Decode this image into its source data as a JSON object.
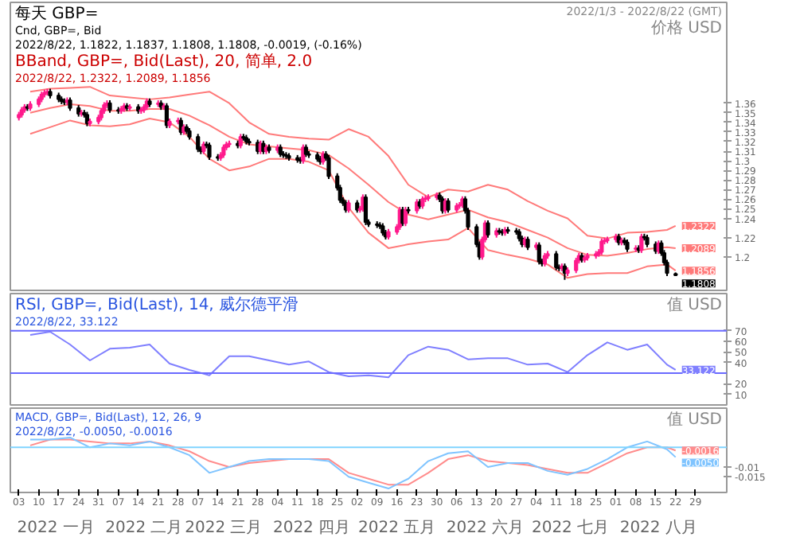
{
  "chart_data": [
    {
      "type": "candlestick",
      "title": "每天 GBP=",
      "subtitle": "Cnd, GBP=, Bid",
      "annotations": [
        "2022/8/22, 1.1822, 1.1837, 1.1808, 1.1808, -0.0019, (-0.16%)",
        "BBand, GBP=, Bid(Last), 20, 简单, 2.0",
        "2022/8/22, 1.2322, 1.2089, 1.1856",
        "2022/1/3 - 2022/8/22 (GMT)",
        {
          "text": "1.1808",
          "x": "2022-08-22",
          "y": 1.1808
        }
      ],
      "ylabel": "价格 USD",
      "x": [
        "2022-01-03",
        "2022-01-04",
        "2022-01-05",
        "2022-01-06",
        "2022-01-07",
        "2022-01-10",
        "2022-01-11",
        "2022-01-12",
        "2022-01-13",
        "2022-01-14",
        "2022-01-17",
        "2022-01-18",
        "2022-01-19",
        "2022-01-20",
        "2022-01-21",
        "2022-01-24",
        "2022-01-25",
        "2022-01-26",
        "2022-01-27",
        "2022-01-28",
        "2022-01-31",
        "2022-02-01",
        "2022-02-02",
        "2022-02-03",
        "2022-02-04",
        "2022-02-07",
        "2022-02-08",
        "2022-02-09",
        "2022-02-10",
        "2022-02-11",
        "2022-02-14",
        "2022-02-15",
        "2022-02-16",
        "2022-02-17",
        "2022-02-18",
        "2022-02-21",
        "2022-02-22",
        "2022-02-23",
        "2022-02-24",
        "2022-02-25",
        "2022-02-28",
        "2022-03-01",
        "2022-03-02",
        "2022-03-03",
        "2022-03-04",
        "2022-03-07",
        "2022-03-08",
        "2022-03-09",
        "2022-03-10",
        "2022-03-11",
        "2022-03-14",
        "2022-03-15",
        "2022-03-16",
        "2022-03-17",
        "2022-03-18",
        "2022-03-21",
        "2022-03-22",
        "2022-03-23",
        "2022-03-24",
        "2022-03-25",
        "2022-03-28",
        "2022-03-29",
        "2022-03-30",
        "2022-03-31",
        "2022-04-01",
        "2022-04-04",
        "2022-04-05",
        "2022-04-06",
        "2022-04-07",
        "2022-04-08",
        "2022-04-11",
        "2022-04-12",
        "2022-04-13",
        "2022-04-14",
        "2022-04-15",
        "2022-04-18",
        "2022-04-19",
        "2022-04-20",
        "2022-04-21",
        "2022-04-22",
        "2022-04-25",
        "2022-04-26",
        "2022-04-27",
        "2022-04-28",
        "2022-04-29",
        "2022-05-02",
        "2022-05-03",
        "2022-05-04",
        "2022-05-05",
        "2022-05-06",
        "2022-05-09",
        "2022-05-10",
        "2022-05-11",
        "2022-05-12",
        "2022-05-13",
        "2022-05-16",
        "2022-05-17",
        "2022-05-18",
        "2022-05-19",
        "2022-05-20",
        "2022-05-23",
        "2022-05-24",
        "2022-05-25",
        "2022-05-26",
        "2022-05-27",
        "2022-05-30",
        "2022-05-31",
        "2022-06-01",
        "2022-06-02",
        "2022-06-03",
        "2022-06-06",
        "2022-06-07",
        "2022-06-08",
        "2022-06-09",
        "2022-06-10",
        "2022-06-13",
        "2022-06-14",
        "2022-06-15",
        "2022-06-16",
        "2022-06-17",
        "2022-06-20",
        "2022-06-21",
        "2022-06-22",
        "2022-06-23",
        "2022-06-24",
        "2022-06-27",
        "2022-06-28",
        "2022-06-29",
        "2022-06-30",
        "2022-07-01",
        "2022-07-04",
        "2022-07-05",
        "2022-07-06",
        "2022-07-07",
        "2022-07-08",
        "2022-07-11",
        "2022-07-12",
        "2022-07-13",
        "2022-07-14",
        "2022-07-15",
        "2022-07-18",
        "2022-07-19",
        "2022-07-20",
        "2022-07-21",
        "2022-07-22",
        "2022-07-25",
        "2022-07-26",
        "2022-07-27",
        "2022-07-28",
        "2022-07-29",
        "2022-08-01",
        "2022-08-02",
        "2022-08-03",
        "2022-08-04",
        "2022-08-05",
        "2022-08-08",
        "2022-08-09",
        "2022-08-10",
        "2022-08-11",
        "2022-08-12",
        "2022-08-15",
        "2022-08-16",
        "2022-08-17",
        "2022-08-18",
        "2022-08-19",
        "2022-08-22"
      ],
      "ohlc": [
        [
          1.345,
          1.351,
          1.342,
          1.348
        ],
        [
          1.348,
          1.356,
          1.345,
          1.353
        ],
        [
          1.353,
          1.359,
          1.35,
          1.356
        ],
        [
          1.356,
          1.359,
          1.352,
          1.355
        ],
        [
          1.355,
          1.362,
          1.352,
          1.359
        ],
        [
          1.359,
          1.367,
          1.356,
          1.364
        ],
        [
          1.364,
          1.372,
          1.361,
          1.369
        ],
        [
          1.369,
          1.374,
          1.366,
          1.371
        ],
        [
          1.371,
          1.375,
          1.368,
          1.372
        ],
        [
          1.372,
          1.375,
          1.365,
          1.368
        ],
        [
          1.368,
          1.371,
          1.361,
          1.364
        ],
        [
          1.364,
          1.367,
          1.359,
          1.362
        ],
        [
          1.362,
          1.365,
          1.358,
          1.361
        ],
        [
          1.361,
          1.366,
          1.358,
          1.363
        ],
        [
          1.363,
          1.366,
          1.352,
          1.355
        ],
        [
          1.355,
          1.358,
          1.346,
          1.349
        ],
        [
          1.349,
          1.353,
          1.346,
          1.35
        ],
        [
          1.35,
          1.353,
          1.345,
          1.348
        ],
        [
          1.348,
          1.351,
          1.336,
          1.339
        ],
        [
          1.339,
          1.344,
          1.336,
          1.341
        ],
        [
          1.341,
          1.348,
          1.338,
          1.345
        ],
        [
          1.345,
          1.355,
          1.342,
          1.352
        ],
        [
          1.352,
          1.361,
          1.349,
          1.358
        ],
        [
          1.358,
          1.363,
          1.355,
          1.36
        ],
        [
          1.36,
          1.363,
          1.35,
          1.353
        ],
        [
          1.353,
          1.356,
          1.349,
          1.352
        ],
        [
          1.352,
          1.357,
          1.349,
          1.354
        ],
        [
          1.354,
          1.36,
          1.351,
          1.357
        ],
        [
          1.357,
          1.36,
          1.352,
          1.355
        ],
        [
          1.355,
          1.359,
          1.352,
          1.356
        ],
        [
          1.356,
          1.359,
          1.349,
          1.352
        ],
        [
          1.352,
          1.356,
          1.349,
          1.353
        ],
        [
          1.353,
          1.359,
          1.35,
          1.356
        ],
        [
          1.356,
          1.365,
          1.353,
          1.362
        ],
        [
          1.362,
          1.365,
          1.356,
          1.359
        ],
        [
          1.359,
          1.363,
          1.356,
          1.36
        ],
        [
          1.36,
          1.363,
          1.353,
          1.356
        ],
        [
          1.356,
          1.36,
          1.353,
          1.357
        ],
        [
          1.357,
          1.36,
          1.334,
          1.337
        ],
        [
          1.337,
          1.344,
          1.334,
          1.341
        ],
        [
          1.341,
          1.345,
          1.338,
          1.342
        ],
        [
          1.342,
          1.345,
          1.327,
          1.33
        ],
        [
          1.33,
          1.338,
          1.327,
          1.335
        ],
        [
          1.335,
          1.338,
          1.328,
          1.331
        ],
        [
          1.331,
          1.334,
          1.322,
          1.325
        ],
        [
          1.325,
          1.328,
          1.309,
          1.312
        ],
        [
          1.312,
          1.315,
          1.307,
          1.31
        ],
        [
          1.31,
          1.32,
          1.307,
          1.317
        ],
        [
          1.317,
          1.32,
          1.313,
          1.316
        ],
        [
          1.316,
          1.319,
          1.301,
          1.304
        ],
        [
          1.304,
          1.307,
          1.3,
          1.303
        ],
        [
          1.303,
          1.309,
          1.3,
          1.306
        ],
        [
          1.306,
          1.317,
          1.303,
          1.314
        ],
        [
          1.314,
          1.32,
          1.311,
          1.317
        ],
        [
          1.317,
          1.321,
          1.314,
          1.318
        ],
        [
          1.318,
          1.321,
          1.313,
          1.316
        ],
        [
          1.316,
          1.328,
          1.313,
          1.325
        ],
        [
          1.325,
          1.328,
          1.321,
          1.324
        ],
        [
          1.324,
          1.327,
          1.317,
          1.32
        ],
        [
          1.32,
          1.323,
          1.316,
          1.319
        ],
        [
          1.319,
          1.322,
          1.307,
          1.31
        ],
        [
          1.31,
          1.321,
          1.307,
          1.318
        ],
        [
          1.318,
          1.321,
          1.307,
          1.31
        ],
        [
          1.31,
          1.317,
          1.307,
          1.314
        ],
        [
          1.314,
          1.317,
          1.308,
          1.311
        ],
        [
          1.311,
          1.317,
          1.308,
          1.314
        ],
        [
          1.314,
          1.317,
          1.304,
          1.307
        ],
        [
          1.307,
          1.31,
          1.303,
          1.306
        ],
        [
          1.306,
          1.309,
          1.302,
          1.305
        ],
        [
          1.305,
          1.308,
          1.3,
          1.303
        ],
        [
          1.303,
          1.306,
          1.298,
          1.301
        ],
        [
          1.301,
          1.304,
          1.297,
          1.3
        ],
        [
          1.3,
          1.317,
          1.297,
          1.314
        ],
        [
          1.314,
          1.317,
          1.304,
          1.307
        ],
        [
          1.307,
          1.31,
          1.303,
          1.306
        ],
        [
          1.306,
          1.309,
          1.299,
          1.302
        ],
        [
          1.302,
          1.305,
          1.296,
          1.299
        ],
        [
          1.299,
          1.31,
          1.296,
          1.307
        ],
        [
          1.307,
          1.31,
          1.3,
          1.303
        ],
        [
          1.303,
          1.306,
          1.281,
          1.284
        ],
        [
          1.284,
          1.287,
          1.269,
          1.272
        ],
        [
          1.272,
          1.275,
          1.256,
          1.259
        ],
        [
          1.259,
          1.262,
          1.253,
          1.256
        ],
        [
          1.256,
          1.259,
          1.246,
          1.249
        ],
        [
          1.249,
          1.259,
          1.246,
          1.256
        ],
        [
          1.256,
          1.259,
          1.246,
          1.249
        ],
        [
          1.249,
          1.253,
          1.246,
          1.25
        ],
        [
          1.25,
          1.265,
          1.247,
          1.262
        ],
        [
          1.262,
          1.265,
          1.233,
          1.236
        ],
        [
          1.236,
          1.239,
          1.231,
          1.234
        ],
        [
          1.234,
          1.237,
          1.23,
          1.233
        ],
        [
          1.233,
          1.236,
          1.229,
          1.232
        ],
        [
          1.232,
          1.235,
          1.222,
          1.225
        ],
        [
          1.225,
          1.228,
          1.218,
          1.221
        ],
        [
          1.221,
          1.229,
          1.218,
          1.226
        ],
        [
          1.226,
          1.234,
          1.223,
          1.231
        ],
        [
          1.231,
          1.252,
          1.228,
          1.249
        ],
        [
          1.249,
          1.252,
          1.232,
          1.235
        ],
        [
          1.235,
          1.252,
          1.232,
          1.249
        ],
        [
          1.249,
          1.252,
          1.245,
          1.248
        ],
        [
          1.248,
          1.26,
          1.245,
          1.257
        ],
        [
          1.257,
          1.26,
          1.25,
          1.253
        ],
        [
          1.253,
          1.263,
          1.25,
          1.26
        ],
        [
          1.26,
          1.264,
          1.257,
          1.261
        ],
        [
          1.261,
          1.265,
          1.258,
          1.262
        ],
        [
          1.262,
          1.267,
          1.259,
          1.264
        ],
        [
          1.264,
          1.267,
          1.257,
          1.26
        ],
        [
          1.26,
          1.263,
          1.245,
          1.248
        ],
        [
          1.248,
          1.261,
          1.245,
          1.258
        ],
        [
          1.258,
          1.261,
          1.246,
          1.249
        ],
        [
          1.249,
          1.256,
          1.246,
          1.253
        ],
        [
          1.253,
          1.257,
          1.25,
          1.254
        ],
        [
          1.254,
          1.263,
          1.251,
          1.26
        ],
        [
          1.26,
          1.263,
          1.245,
          1.248
        ],
        [
          1.248,
          1.251,
          1.228,
          1.231
        ],
        [
          1.231,
          1.234,
          1.21,
          1.213
        ],
        [
          1.213,
          1.216,
          1.197,
          1.2
        ],
        [
          1.2,
          1.221,
          1.197,
          1.218
        ],
        [
          1.218,
          1.238,
          1.215,
          1.235
        ],
        [
          1.235,
          1.238,
          1.22,
          1.223
        ],
        [
          1.223,
          1.23,
          1.22,
          1.227
        ],
        [
          1.227,
          1.23,
          1.223,
          1.226
        ],
        [
          1.226,
          1.229,
          1.222,
          1.225
        ],
        [
          1.225,
          1.231,
          1.222,
          1.228
        ],
        [
          1.228,
          1.231,
          1.224,
          1.227
        ],
        [
          1.227,
          1.23,
          1.223,
          1.226
        ],
        [
          1.226,
          1.229,
          1.216,
          1.219
        ],
        [
          1.219,
          1.222,
          1.21,
          1.213
        ],
        [
          1.213,
          1.221,
          1.21,
          1.218
        ],
        [
          1.218,
          1.221,
          1.207,
          1.21
        ],
        [
          1.21,
          1.215,
          1.207,
          1.212
        ],
        [
          1.212,
          1.215,
          1.192,
          1.195
        ],
        [
          1.195,
          1.198,
          1.19,
          1.193
        ],
        [
          1.193,
          1.204,
          1.19,
          1.201
        ],
        [
          1.201,
          1.206,
          1.198,
          1.203
        ],
        [
          1.203,
          1.206,
          1.186,
          1.189
        ],
        [
          1.189,
          1.192,
          1.185,
          1.188
        ],
        [
          1.188,
          1.193,
          1.185,
          1.19
        ],
        [
          1.19,
          1.193,
          1.176,
          1.183
        ],
        [
          1.183,
          1.189,
          1.18,
          1.186
        ],
        [
          1.186,
          1.199,
          1.183,
          1.196
        ],
        [
          1.196,
          1.204,
          1.193,
          1.201
        ],
        [
          1.201,
          1.204,
          1.194,
          1.197
        ],
        [
          1.197,
          1.202,
          1.194,
          1.199
        ],
        [
          1.199,
          1.204,
          1.196,
          1.201
        ],
        [
          1.201,
          1.206,
          1.198,
          1.203
        ],
        [
          1.203,
          1.208,
          1.2,
          1.205
        ],
        [
          1.205,
          1.219,
          1.202,
          1.216
        ],
        [
          1.216,
          1.22,
          1.213,
          1.217
        ],
        [
          1.217,
          1.221,
          1.214,
          1.218
        ],
        [
          1.218,
          1.224,
          1.215,
          1.221
        ],
        [
          1.221,
          1.224,
          1.212,
          1.215
        ],
        [
          1.215,
          1.22,
          1.212,
          1.217
        ],
        [
          1.217,
          1.22,
          1.212,
          1.215
        ],
        [
          1.215,
          1.218,
          1.205,
          1.208
        ],
        [
          1.208,
          1.212,
          1.205,
          1.209
        ],
        [
          1.209,
          1.212,
          1.204,
          1.207
        ],
        [
          1.207,
          1.224,
          1.204,
          1.221
        ],
        [
          1.221,
          1.224,
          1.217,
          1.22
        ],
        [
          1.22,
          1.223,
          1.21,
          1.213
        ],
        [
          1.213,
          1.216,
          1.203,
          1.206
        ],
        [
          1.206,
          1.217,
          1.203,
          1.214
        ],
        [
          1.214,
          1.217,
          1.201,
          1.204
        ],
        [
          1.204,
          1.207,
          1.191,
          1.194
        ],
        [
          1.194,
          1.197,
          1.18,
          1.183
        ],
        [
          1.1822,
          1.1837,
          1.1808,
          1.1808
        ]
      ],
      "series": [
        {
          "type": "line",
          "color": "#ff7a7a",
          "x": [
            "2022-01-07",
            "2022-01-14",
            "2022-01-21",
            "2022-01-28",
            "2022-02-04",
            "2022-02-11",
            "2022-02-18",
            "2022-02-25",
            "2022-03-04",
            "2022-03-11",
            "2022-03-18",
            "2022-03-25",
            "2022-04-01",
            "2022-04-08",
            "2022-04-15",
            "2022-04-22",
            "2022-04-29",
            "2022-05-06",
            "2022-05-13",
            "2022-05-20",
            "2022-05-27",
            "2022-06-03",
            "2022-06-10",
            "2022-06-17",
            "2022-06-24",
            "2022-07-01",
            "2022-07-08",
            "2022-07-15",
            "2022-07-22",
            "2022-07-29",
            "2022-08-05",
            "2022-08-12",
            "2022-08-19",
            "2022-08-22"
          ],
          "values": [
            1.372,
            1.375,
            1.376,
            1.377,
            1.368,
            1.366,
            1.364,
            1.366,
            1.369,
            1.372,
            1.36,
            1.34,
            1.328,
            1.325,
            1.323,
            1.322,
            1.333,
            1.325,
            1.305,
            1.275,
            1.262,
            1.27,
            1.268,
            1.275,
            1.27,
            1.258,
            1.248,
            1.24,
            1.222,
            1.219,
            1.225,
            1.226,
            1.228,
            1.2322
          ],
          "value_labels": [
            null,
            null,
            null,
            null,
            null,
            null,
            null,
            null,
            null,
            null,
            null,
            null,
            null,
            null,
            null,
            null,
            null,
            null,
            null,
            null,
            null,
            null,
            null,
            null,
            null,
            null,
            null,
            null,
            null,
            null,
            null,
            null,
            null,
            "1.2322"
          ]
        },
        {
          "type": "line",
          "color": "#ff7a7a",
          "x": [
            "2022-01-07",
            "2022-01-14",
            "2022-01-21",
            "2022-01-28",
            "2022-02-04",
            "2022-02-11",
            "2022-02-18",
            "2022-02-25",
            "2022-03-04",
            "2022-03-11",
            "2022-03-18",
            "2022-03-25",
            "2022-04-01",
            "2022-04-08",
            "2022-04-15",
            "2022-04-22",
            "2022-04-29",
            "2022-05-06",
            "2022-05-13",
            "2022-05-20",
            "2022-05-27",
            "2022-06-03",
            "2022-06-10",
            "2022-06-17",
            "2022-06-24",
            "2022-07-01",
            "2022-07-08",
            "2022-07-15",
            "2022-07-22",
            "2022-07-29",
            "2022-08-05",
            "2022-08-12",
            "2022-08-19",
            "2022-08-22"
          ],
          "values": [
            1.35,
            1.355,
            1.359,
            1.357,
            1.352,
            1.352,
            1.354,
            1.354,
            1.347,
            1.337,
            1.325,
            1.317,
            1.315,
            1.313,
            1.311,
            1.306,
            1.292,
            1.275,
            1.257,
            1.244,
            1.239,
            1.244,
            1.249,
            1.241,
            1.236,
            1.228,
            1.22,
            1.209,
            1.202,
            1.201,
            1.204,
            1.208,
            1.21,
            1.2089
          ],
          "value_labels": [
            null,
            null,
            null,
            null,
            null,
            null,
            null,
            null,
            null,
            null,
            null,
            null,
            null,
            null,
            null,
            null,
            null,
            null,
            null,
            null,
            null,
            null,
            null,
            null,
            null,
            null,
            null,
            null,
            null,
            null,
            null,
            null,
            null,
            "1.2089"
          ]
        },
        {
          "type": "line",
          "color": "#ff7a7a",
          "x": [
            "2022-01-07",
            "2022-01-14",
            "2022-01-21",
            "2022-01-28",
            "2022-02-04",
            "2022-02-11",
            "2022-02-18",
            "2022-02-25",
            "2022-03-04",
            "2022-03-11",
            "2022-03-18",
            "2022-03-25",
            "2022-04-01",
            "2022-04-08",
            "2022-04-15",
            "2022-04-22",
            "2022-04-29",
            "2022-05-06",
            "2022-05-13",
            "2022-05-20",
            "2022-05-27",
            "2022-06-03",
            "2022-06-10",
            "2022-06-17",
            "2022-06-24",
            "2022-07-01",
            "2022-07-08",
            "2022-07-15",
            "2022-07-22",
            "2022-07-29",
            "2022-08-05",
            "2022-08-12",
            "2022-08-19",
            "2022-08-22"
          ],
          "values": [
            1.328,
            1.335,
            1.342,
            1.337,
            1.336,
            1.338,
            1.344,
            1.34,
            1.325,
            1.302,
            1.29,
            1.294,
            1.302,
            1.302,
            1.299,
            1.29,
            1.251,
            1.225,
            1.209,
            1.213,
            1.216,
            1.218,
            1.23,
            1.207,
            1.202,
            1.198,
            1.192,
            1.178,
            1.182,
            1.183,
            1.183,
            1.19,
            1.192,
            1.1856
          ],
          "value_labels": [
            null,
            null,
            null,
            null,
            null,
            null,
            null,
            null,
            null,
            null,
            null,
            null,
            null,
            null,
            null,
            null,
            null,
            null,
            null,
            null,
            null,
            null,
            null,
            null,
            null,
            null,
            null,
            null,
            null,
            null,
            null,
            null,
            null,
            "1.1856"
          ]
        }
      ],
      "xlim": [
        "2021-12-31",
        "2022-09-09"
      ],
      "ylim": [
        1.165,
        1.465
      ],
      "yticks": [
        1.2,
        1.22,
        1.24,
        1.25,
        1.26,
        1.27,
        1.28,
        1.29,
        1.3,
        1.31,
        1.32,
        1.33,
        1.34,
        1.35,
        1.36
      ],
      "tick_labels": "y"
    },
    {
      "type": "line",
      "title": "RSI, GBP=, Bid(Last), 14, 威尔德平滑",
      "subtitle": "2022/8/22, 33.122",
      "ylabel": "值 USD",
      "x": [
        "2022-01-07",
        "2022-01-14",
        "2022-01-21",
        "2022-01-28",
        "2022-02-04",
        "2022-02-11",
        "2022-02-18",
        "2022-02-25",
        "2022-03-04",
        "2022-03-11",
        "2022-03-18",
        "2022-03-25",
        "2022-04-01",
        "2022-04-08",
        "2022-04-15",
        "2022-04-22",
        "2022-04-29",
        "2022-05-06",
        "2022-05-13",
        "2022-05-20",
        "2022-05-27",
        "2022-06-03",
        "2022-06-10",
        "2022-06-17",
        "2022-06-24",
        "2022-07-01",
        "2022-07-08",
        "2022-07-15",
        "2022-07-22",
        "2022-07-29",
        "2022-08-05",
        "2022-08-12",
        "2022-08-19",
        "2022-08-22"
      ],
      "series": [
        {
          "color": "#7f7fff",
          "values": [
            66,
            69,
            57,
            42,
            53,
            54,
            57,
            39,
            33,
            28,
            46,
            46,
            42,
            38,
            41,
            31,
            27,
            28,
            26,
            47,
            55,
            52,
            43,
            44,
            44,
            38,
            39,
            31,
            47,
            59,
            52,
            57,
            38,
            33.122
          ],
          "value_labels": [
            null,
            null,
            null,
            null,
            null,
            null,
            null,
            null,
            null,
            null,
            null,
            null,
            null,
            null,
            null,
            null,
            null,
            null,
            null,
            null,
            null,
            null,
            null,
            null,
            null,
            null,
            null,
            null,
            null,
            null,
            null,
            null,
            null,
            "33.122"
          ]
        }
      ],
      "ref_lines": [
        {
          "axis": "y",
          "value": 70,
          "color": "#6a6aff"
        },
        {
          "axis": "y",
          "value": 30,
          "color": "#6a6aff"
        }
      ],
      "xlim": [
        "2021-12-31",
        "2022-09-09"
      ],
      "ylim": [
        0,
        105
      ],
      "yticks": [
        10,
        20,
        40,
        50,
        60,
        70
      ],
      "tick_labels": "y"
    },
    {
      "type": "line",
      "title": "MACD, GBP=, Bid(Last), 12, 26, 9",
      "subtitle": "2022/8/22, -0.0050, -0.0016",
      "ylabel": "值 USD",
      "x": [
        "2022-01-07",
        "2022-01-14",
        "2022-01-21",
        "2022-01-28",
        "2022-02-04",
        "2022-02-11",
        "2022-02-18",
        "2022-02-25",
        "2022-03-04",
        "2022-03-11",
        "2022-03-18",
        "2022-03-25",
        "2022-04-01",
        "2022-04-08",
        "2022-04-15",
        "2022-04-22",
        "2022-04-29",
        "2022-05-06",
        "2022-05-13",
        "2022-05-20",
        "2022-05-27",
        "2022-06-03",
        "2022-06-10",
        "2022-06-17",
        "2022-06-24",
        "2022-07-01",
        "2022-07-08",
        "2022-07-15",
        "2022-07-22",
        "2022-07-29",
        "2022-08-05",
        "2022-08-12",
        "2022-08-19",
        "2022-08-22"
      ],
      "series": [
        {
          "color": "#ff8c8c",
          "values": [
            0.001,
            0.004,
            0.004,
            0.003,
            0.002,
            0.002,
            0.003,
            0.001,
            -0.002,
            -0.007,
            -0.01,
            -0.008,
            -0.007,
            -0.006,
            -0.006,
            -0.006,
            -0.013,
            -0.016,
            -0.019,
            -0.019,
            -0.013,
            -0.006,
            -0.004,
            -0.007,
            -0.008,
            -0.009,
            -0.011,
            -0.013,
            -0.013,
            -0.008,
            -0.003,
            0,
            0,
            -0.0016
          ],
          "value_labels": [
            null,
            null,
            null,
            null,
            null,
            null,
            null,
            null,
            null,
            null,
            null,
            null,
            null,
            null,
            null,
            null,
            null,
            null,
            null,
            null,
            null,
            null,
            null,
            null,
            null,
            null,
            null,
            null,
            null,
            null,
            null,
            null,
            null,
            "-0.0016"
          ]
        },
        {
          "color": "#7fc4ff",
          "values": [
            0.004,
            0.004,
            0.005,
            0,
            0.002,
            0.001,
            0.003,
            0,
            -0.004,
            -0.013,
            -0.01,
            -0.007,
            -0.006,
            -0.006,
            -0.006,
            -0.007,
            -0.015,
            -0.018,
            -0.021,
            -0.016,
            -0.007,
            -0.003,
            -0.002,
            -0.01,
            -0.008,
            -0.008,
            -0.012,
            -0.014,
            -0.011,
            -0.006,
            0,
            0.003,
            -0.001,
            -0.005
          ],
          "value_labels": [
            null,
            null,
            null,
            null,
            null,
            null,
            null,
            null,
            null,
            null,
            null,
            null,
            null,
            null,
            null,
            null,
            null,
            null,
            null,
            null,
            null,
            null,
            null,
            null,
            null,
            null,
            null,
            null,
            null,
            null,
            null,
            null,
            null,
            "-0.0050"
          ]
        }
      ],
      "ref_lines": [
        {
          "axis": "y",
          "value": 0,
          "color": "#80d4ff"
        }
      ],
      "xlim": [
        "2021-12-31",
        "2022-09-09"
      ],
      "ylim": [
        -0.023,
        0.02
      ],
      "yticks": [
        -0.015,
        -0.01
      ],
      "xticks": [
        {
          "value": "2022-01-03",
          "label": "03"
        },
        {
          "value": "2022-01-10",
          "label": "10"
        },
        {
          "value": "2022-01-17",
          "label": "17"
        },
        {
          "value": "2022-01-24",
          "label": "24"
        },
        {
          "value": "2022-01-31",
          "label": "31"
        },
        {
          "value": "2022-02-07",
          "label": "07"
        },
        {
          "value": "2022-02-14",
          "label": "14"
        },
        {
          "value": "2022-02-21",
          "label": "21"
        },
        {
          "value": "2022-02-28",
          "label": "28"
        },
        {
          "value": "2022-03-07",
          "label": "07"
        },
        {
          "value": "2022-03-14",
          "label": "14"
        },
        {
          "value": "2022-03-21",
          "label": "21"
        },
        {
          "value": "2022-03-28",
          "label": "28"
        },
        {
          "value": "2022-04-04",
          "label": "04"
        },
        {
          "value": "2022-04-11",
          "label": "11"
        },
        {
          "value": "2022-04-18",
          "label": "18"
        },
        {
          "value": "2022-04-25",
          "label": "25"
        },
        {
          "value": "2022-05-02",
          "label": "02"
        },
        {
          "value": "2022-05-09",
          "label": "09"
        },
        {
          "value": "2022-05-16",
          "label": "16"
        },
        {
          "value": "2022-05-23",
          "label": "23"
        },
        {
          "value": "2022-05-30",
          "label": "30"
        },
        {
          "value": "2022-06-06",
          "label": "06"
        },
        {
          "value": "2022-06-13",
          "label": "13"
        },
        {
          "value": "2022-06-20",
          "label": "20"
        },
        {
          "value": "2022-06-27",
          "label": "27"
        },
        {
          "value": "2022-07-04",
          "label": "04"
        },
        {
          "value": "2022-07-11",
          "label": "11"
        },
        {
          "value": "2022-07-18",
          "label": "18"
        },
        {
          "value": "2022-07-25",
          "label": "25"
        },
        {
          "value": "2022-08-01",
          "label": "01"
        },
        {
          "value": "2022-08-08",
          "label": "08"
        },
        {
          "value": "2022-08-15",
          "label": "15"
        },
        {
          "value": "2022-08-22",
          "label": "22"
        },
        {
          "value": "2022-08-29",
          "label": "29"
        }
      ],
      "x2lim": [
        "2021-12-31",
        "2022-09-09"
      ],
      "x2ticks": [
        {
          "value": "2022-01-16",
          "label": "2022 一月"
        },
        {
          "value": "2022-02-16",
          "label": "2022 二月"
        },
        {
          "value": "2022-03-16",
          "label": "2022 三月"
        },
        {
          "value": "2022-04-16",
          "label": "2022 四月"
        },
        {
          "value": "2022-05-16",
          "label": "2022 五月"
        },
        {
          "value": "2022-06-16",
          "label": "2022 六月"
        },
        {
          "value": "2022-07-16",
          "label": "2022 七月"
        },
        {
          "value": "2022-08-16",
          "label": "2022 八月"
        }
      ]
    }
  ]
}
